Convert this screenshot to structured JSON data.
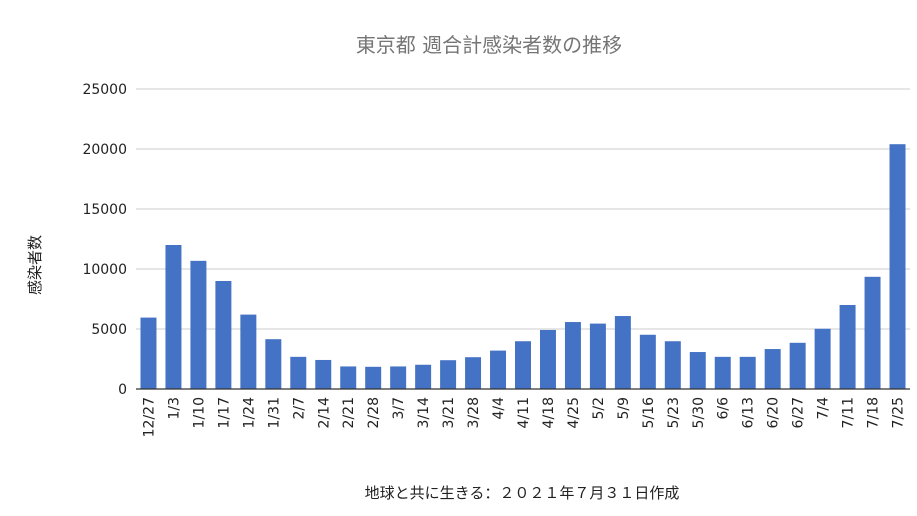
{
  "chart_data": {
    "type": "bar",
    "title": "東京都 週合計感染者数の推移",
    "xlabel": "地球と共に生きる：２０２１年７月３１日作成",
    "ylabel": "感染者数",
    "ylim": [
      0,
      25000
    ],
    "yticks": [
      "0",
      "5000",
      "10000",
      "15000",
      "20000",
      "25000"
    ],
    "grid": true,
    "bar_color": "#4472c4",
    "categories": [
      "12/27",
      "1/3",
      "1/10",
      "1/17",
      "1/24",
      "1/31",
      "2/7",
      "2/14",
      "2/21",
      "2/28",
      "3/7",
      "3/14",
      "3/21",
      "3/28",
      "4/4",
      "4/11",
      "4/18",
      "4/25",
      "5/2",
      "5/9",
      "5/16",
      "5/23",
      "5/30",
      "6/6",
      "6/13",
      "6/20",
      "6/27",
      "7/4",
      "7/11",
      "7/18",
      "7/25"
    ],
    "values": [
      5950,
      12000,
      10680,
      9000,
      6200,
      4150,
      2680,
      2420,
      1880,
      1850,
      1880,
      2020,
      2400,
      2650,
      3200,
      3980,
      4920,
      5580,
      5450,
      6080,
      4520,
      3980,
      3080,
      2680,
      2680,
      3330,
      3850,
      5020,
      7000,
      9350,
      20400
    ]
  }
}
